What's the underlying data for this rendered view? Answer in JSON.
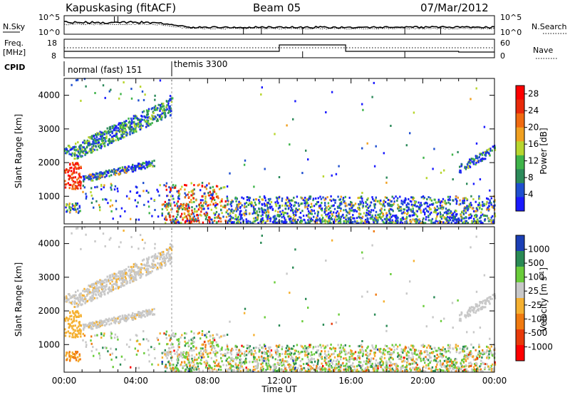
{
  "header": {
    "station": "Kapuskasing (fitACF)",
    "beam": "Beam 05",
    "date": "07/Mar/2012"
  },
  "status_panels": {
    "nsky_label": "N.Sky",
    "nsky_ticks": [
      "10^5",
      "10^0"
    ],
    "nsearch_label": "N.Search",
    "nsearch_ticks": [
      "10^5",
      "10^0"
    ],
    "freq_label": "Freq.",
    "freq_unit": "[MHz]",
    "freq_ticks": [
      "18",
      "8"
    ],
    "nave_label": "Nave",
    "nave_ticks": [
      "60",
      "0"
    ],
    "cpid_label": "CPID",
    "cpid_modes": [
      {
        "name": "normal (fast) 151",
        "start": 0,
        "end": 6
      },
      {
        "name": "themis 3300",
        "start": 6,
        "end": 24
      }
    ]
  },
  "chart_data": [
    {
      "type": "heatmap",
      "name": "power",
      "xlabel": "",
      "ylabel": "Slant Range [km]",
      "x_ticks": [
        "00:00",
        "04:00",
        "08:00",
        "12:00",
        "16:00",
        "20:00",
        "00:00"
      ],
      "xlim_hours": [
        0,
        24
      ],
      "y_ticks": [
        1000,
        2000,
        3000,
        4000
      ],
      "ylim": [
        180,
        4500
      ],
      "colorbar_label": "Power [dB]",
      "colorbar_ticks": [
        4,
        8,
        12,
        16,
        20,
        24,
        28
      ],
      "colorbar_range": [
        0,
        30
      ],
      "colors": [
        "#1a1aff",
        "#1f4fd0",
        "#2c8a5a",
        "#3fb44a",
        "#b8d62e",
        "#f0a020",
        "#f06a10",
        "#e82a0a",
        "#ff0000"
      ]
    },
    {
      "type": "heatmap",
      "name": "velocity",
      "xlabel": "Time UT",
      "ylabel": "Slant Range [km]",
      "x_ticks": [
        "00:00",
        "04:00",
        "08:00",
        "12:00",
        "16:00",
        "20:00",
        "00:00"
      ],
      "xlim_hours": [
        0,
        24
      ],
      "y_ticks": [
        1000,
        2000,
        3000,
        4000
      ],
      "ylim": [
        180,
        4500
      ],
      "colorbar_label": "Velocity [m s^-1]",
      "colorbar_ticks": [
        "1000",
        "500",
        "100",
        "25",
        "-25",
        "-100",
        "-500",
        "-1000"
      ],
      "colors": [
        "#1b3fb5",
        "#2a8a55",
        "#6acc3a",
        "#c8c8c8",
        "#f5b030",
        "#f07a10",
        "#e83a0a",
        "#ff0000"
      ]
    }
  ]
}
